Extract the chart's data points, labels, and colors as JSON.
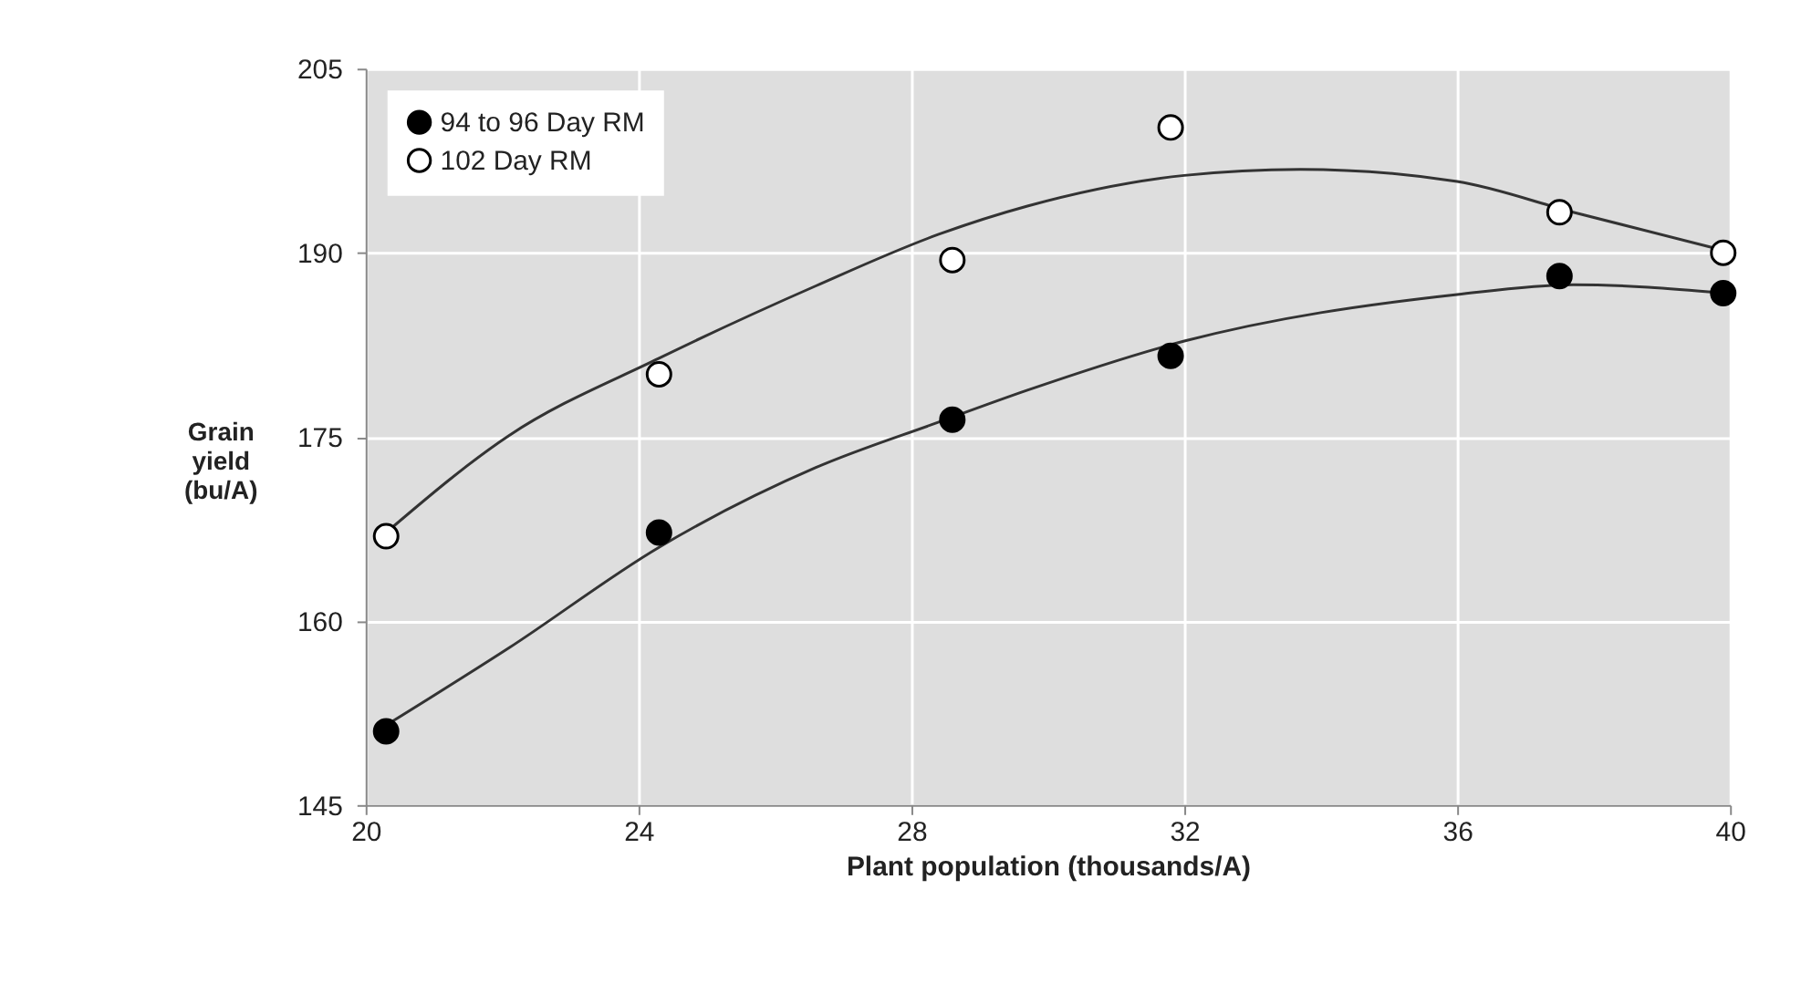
{
  "chart_data": {
    "type": "scatter",
    "xlabel": "Plant population (thousands/A)",
    "ylabel": "Grain\nyield\n(bu/A)",
    "xlim": [
      20,
      40
    ],
    "xticks": [
      20,
      24,
      28,
      32,
      36,
      40
    ],
    "ylim": [
      145,
      205
    ],
    "yticks": [
      145,
      160,
      175,
      190,
      205
    ],
    "grid": true,
    "legend": "top left",
    "marker": "circle",
    "series": [
      {
        "name": "94 to 96 Day RM",
        "color": "#000000",
        "x": [
          20.3,
          24.3,
          28.6,
          31.8,
          37.5,
          39.9
        ],
        "values": [
          151.0,
          167.2,
          176.4,
          181.6,
          188.1,
          186.7
        ]
      },
      {
        "name": "102 Day RM",
        "color": "#ffffff",
        "x": [
          20.3,
          24.3,
          28.6,
          31.8,
          37.5,
          39.9
        ],
        "values": [
          166.9,
          180.1,
          189.4,
          200.2,
          193.3,
          190.0
        ]
      },
      {
        "type": "line",
        "color": "#333333",
        "marker": "none",
        "x": [
          20.3,
          22.1,
          24.3,
          26.6,
          28.4,
          29.7,
          32,
          36,
          37.7,
          39.9
        ],
        "values": [
          151.5,
          157.8,
          166.0,
          172.5,
          176.2,
          178.8,
          182.8,
          186.6,
          187.4,
          186.7
        ]
      },
      {
        "type": "line",
        "color": "#333333",
        "marker": "none",
        "x": [
          20.3,
          22.1,
          24.3,
          26.6,
          28.4,
          29.7,
          32,
          33.7,
          36,
          37.7,
          39.9
        ],
        "values": [
          167.2,
          175.1,
          181.4,
          187.3,
          191.5,
          193.8,
          196.3,
          196.8,
          195.8,
          193.3,
          190.2
        ]
      }
    ]
  }
}
